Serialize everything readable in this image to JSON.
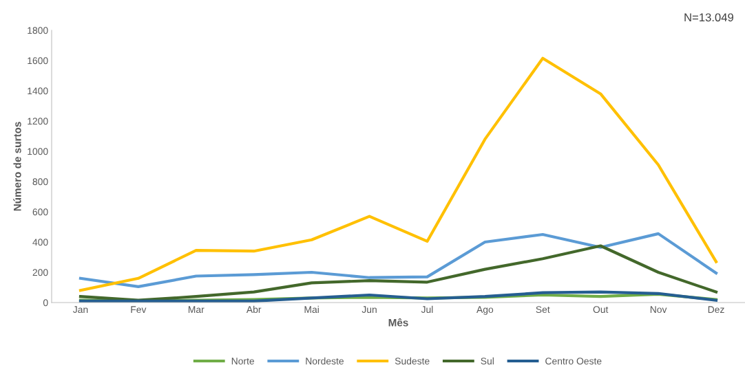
{
  "chart_data": {
    "type": "line",
    "annotations": [
      "N=13.049"
    ],
    "xlabel": "Mês",
    "ylabel": "Número de surtos",
    "categories": [
      "Jan",
      "Fev",
      "Mar",
      "Abr",
      "Mai",
      "Jun",
      "Jul",
      "Ago",
      "Set",
      "Out",
      "Nov",
      "Dez"
    ],
    "series": [
      {
        "name": "Norte",
        "color": "#70ad47",
        "values": [
          15,
          10,
          15,
          20,
          30,
          35,
          30,
          35,
          50,
          40,
          55,
          20
        ]
      },
      {
        "name": "Nordeste",
        "color": "#5b9bd5",
        "values": [
          160,
          105,
          175,
          185,
          200,
          165,
          170,
          400,
          450,
          365,
          455,
          195
        ]
      },
      {
        "name": "Sudeste",
        "color": "#ffc000",
        "values": [
          80,
          160,
          345,
          340,
          415,
          570,
          405,
          1080,
          1615,
          1380,
          910,
          270
        ]
      },
      {
        "name": "Sul",
        "color": "#43682b",
        "values": [
          40,
          15,
          40,
          70,
          130,
          145,
          135,
          220,
          290,
          375,
          200,
          70
        ]
      },
      {
        "name": "Centro Oeste",
        "color": "#255e91",
        "values": [
          10,
          10,
          10,
          10,
          30,
          50,
          25,
          40,
          65,
          70,
          60,
          15
        ]
      }
    ],
    "ylim": [
      0,
      1800
    ],
    "yticks": [
      0,
      200,
      400,
      600,
      800,
      1000,
      1200,
      1400,
      1600,
      1800
    ],
    "grid": false,
    "legend": "bottom",
    "marker": "none",
    "line_style": "solid"
  }
}
